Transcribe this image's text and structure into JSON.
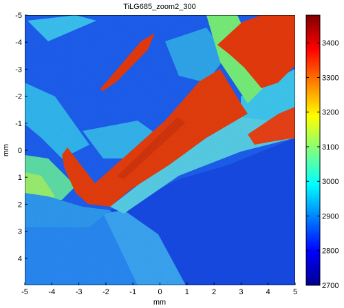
{
  "chart_data": {
    "type": "heatmap",
    "title": "TiLG685_zoom2_300",
    "xlabel": "mm",
    "ylabel": "mm",
    "xlim": [
      -5,
      5
    ],
    "ylim": [
      -5,
      5
    ],
    "y_direction": "top-to-bottom",
    "x_ticks": [
      "-5",
      "-4",
      "-3",
      "-2",
      "-1",
      "0",
      "1",
      "2",
      "3",
      "4",
      "5"
    ],
    "y_ticks": [
      "-5",
      "-4",
      "-3",
      "-2",
      "-1",
      "0",
      "1",
      "2",
      "3",
      "4"
    ],
    "colorbar": {
      "min": 2700,
      "max": 3480,
      "ticks": [
        "3400",
        "3300",
        "3200",
        "3100",
        "3000",
        "2900",
        "2800",
        "2700"
      ],
      "tick_values": [
        3400,
        3300,
        3200,
        3100,
        3000,
        2900,
        2800,
        2700
      ],
      "colormap": "jet"
    },
    "grid": false,
    "regions": [
      {
        "label": "background",
        "value": 2820
      },
      {
        "label": "light-blue grains",
        "value": 2920
      },
      {
        "label": "green boundary grains",
        "value": 3060
      },
      {
        "label": "red grains",
        "value": 3350
      }
    ]
  }
}
